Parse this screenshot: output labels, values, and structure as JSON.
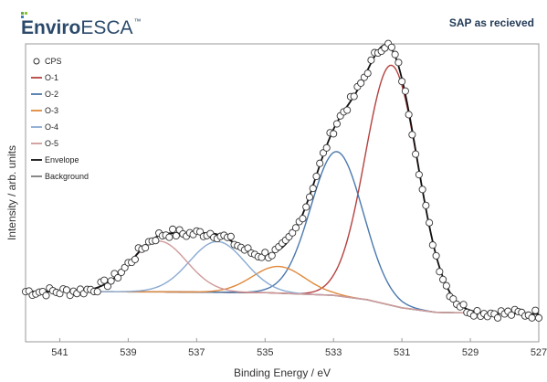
{
  "logo": {
    "brand_bold": "Enviro",
    "brand_thin": "ESCA",
    "trademark": "™"
  },
  "chart_data": {
    "type": "line",
    "title": "SAP as recieved",
    "xlabel": "Binding Energy / eV",
    "ylabel": "Intensity / arb. units",
    "xlim": [
      542,
      527
    ],
    "x_reversed": true,
    "xticks": [
      541,
      539,
      537,
      535,
      533,
      531,
      529,
      527
    ],
    "ylim": [
      0,
      1
    ],
    "yticks_shown": false,
    "grid": false,
    "legend_position": "top-left",
    "background": {
      "name": "Background",
      "color": "#7a7a7a",
      "points": [
        [
          542,
          0.106
        ],
        [
          538,
          0.105
        ],
        [
          535,
          0.102
        ],
        [
          533,
          0.092
        ],
        [
          532,
          0.075
        ],
        [
          531,
          0.045
        ],
        [
          530,
          0.028
        ],
        [
          528,
          0.024
        ],
        [
          527,
          0.022
        ]
      ]
    },
    "components": [
      {
        "name": "O-1",
        "color": "#b5423f",
        "center": 531.3,
        "height": 0.9,
        "fwhm": 1.8
      },
      {
        "name": "O-2",
        "color": "#4a78ad",
        "center": 532.9,
        "height": 0.54,
        "fwhm": 1.8
      },
      {
        "name": "O-3",
        "color": "#e0883a",
        "center": 534.6,
        "height": 0.1,
        "fwhm": 1.8
      },
      {
        "name": "O-4",
        "color": "#8aaad2",
        "center": 536.4,
        "height": 0.19,
        "fwhm": 1.9
      },
      {
        "name": "O-5",
        "color": "#d09a9a",
        "center": 538.1,
        "height": 0.19,
        "fwhm": 1.9
      }
    ],
    "envelope": {
      "name": "Envelope",
      "color": "#111111"
    },
    "cps": {
      "name": "CPS",
      "color": "#333333"
    }
  }
}
